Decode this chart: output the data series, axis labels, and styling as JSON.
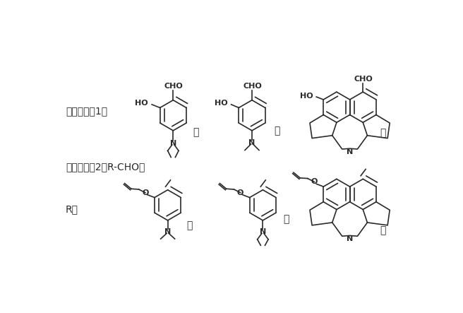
{
  "bg_color": "#ffffff",
  "line_color": "#2a2a2a",
  "label1": "所述化合物1为",
  "label2": "所述化合物2为R-CHO；",
  "label3": "R为",
  "sep_comma": "、",
  "sep_or1": "或",
  "sep_semi1": "；",
  "sep_or2": "或",
  "sep_semi2": "；"
}
